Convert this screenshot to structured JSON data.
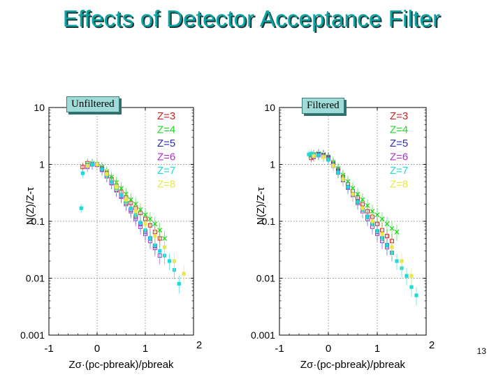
{
  "slide": {
    "title": "Effects of Detector Acceptance Filter",
    "page_number": "13"
  },
  "chart_data": [
    {
      "type": "scatter",
      "label_box": "Unfiltered",
      "xlabel": "Zσ·(pc-pbreak)/pbreak",
      "ylabel": "N(Z)/Z-τ",
      "yscale": "log",
      "xlim": [
        -1,
        2
      ],
      "ylim": [
        0.001,
        10
      ],
      "x_ticks": [
        "-1",
        "0",
        "1",
        "2"
      ],
      "y_ticks": [
        "0.001",
        "0.01",
        "0.1",
        "1",
        "10"
      ],
      "legend_position": "top-right",
      "series": [
        {
          "name": "Z=3",
          "color": "#d42020",
          "x": [
            -0.3,
            -0.2,
            -0.1,
            0,
            0.1,
            0.2,
            0.3,
            0.4,
            0.5,
            0.6,
            0.7,
            0.8,
            0.9,
            1.0,
            1.1,
            1.2,
            1.3
          ],
          "y": [
            0.9,
            1.05,
            1.0,
            1.0,
            0.85,
            0.7,
            0.55,
            0.42,
            0.33,
            0.26,
            0.21,
            0.17,
            0.14,
            0.11,
            0.085,
            0.065,
            0.05
          ]
        },
        {
          "name": "Z=4",
          "color": "#22d822",
          "x": [
            -0.2,
            -0.1,
            0,
            0.1,
            0.2,
            0.3,
            0.4,
            0.5,
            0.6,
            0.7,
            0.8,
            0.9,
            1.0,
            1.1,
            1.2,
            1.3,
            1.4
          ],
          "y": [
            1.0,
            1.05,
            1.0,
            0.9,
            0.75,
            0.6,
            0.48,
            0.38,
            0.3,
            0.24,
            0.2,
            0.16,
            0.13,
            0.11,
            0.09,
            0.07,
            0.05
          ]
        },
        {
          "name": "Z=5",
          "color": "#2a2ab0",
          "x": [
            -0.2,
            -0.1,
            0,
            0.1,
            0.2,
            0.3,
            0.4,
            0.5,
            0.6,
            0.7,
            0.8,
            0.9,
            1.0,
            1.1,
            1.2
          ],
          "y": [
            0.95,
            1.0,
            1.0,
            0.82,
            0.62,
            0.47,
            0.36,
            0.28,
            0.21,
            0.16,
            0.12,
            0.09,
            0.065,
            0.05,
            0.037
          ]
        },
        {
          "name": "Z=6",
          "color": "#b030c8",
          "x": [
            -0.2,
            -0.1,
            0,
            0.1,
            0.2,
            0.3,
            0.4,
            0.5,
            0.6,
            0.7,
            0.8,
            0.9,
            1.0,
            1.1,
            1.2,
            1.3
          ],
          "y": [
            0.9,
            1.0,
            0.98,
            0.8,
            0.62,
            0.47,
            0.35,
            0.27,
            0.2,
            0.15,
            0.11,
            0.08,
            0.06,
            0.045,
            0.034,
            0.025
          ]
        },
        {
          "name": "Z=7",
          "color": "#20d8d8",
          "x": [
            -0.33,
            -0.3,
            -0.2,
            -0.1,
            0,
            0.1,
            0.2,
            0.3,
            0.4,
            0.5,
            0.6,
            0.7,
            0.8,
            0.9,
            1.0,
            1.1,
            1.2,
            1.3,
            1.4,
            1.5,
            1.6,
            1.7
          ],
          "y": [
            0.17,
            0.7,
            0.95,
            1.0,
            1.0,
            0.82,
            0.64,
            0.49,
            0.38,
            0.29,
            0.22,
            0.17,
            0.13,
            0.095,
            0.07,
            0.05,
            0.038,
            0.03,
            0.025,
            0.02,
            0.014,
            0.008
          ]
        },
        {
          "name": "Z=8",
          "color": "#e8e84a",
          "x": [
            -0.2,
            0,
            0.2,
            0.4,
            0.6,
            0.8,
            1.0,
            1.2,
            1.4,
            1.6,
            1.8
          ],
          "y": [
            0.95,
            1.0,
            0.68,
            0.4,
            0.24,
            0.15,
            0.09,
            0.055,
            0.035,
            0.02,
            0.012
          ]
        }
      ]
    },
    {
      "type": "scatter",
      "label_box": "Filtered",
      "xlabel": "Zσ·(pc-pbreak)/pbreak",
      "ylabel": "N(Z)/Z-τ",
      "yscale": "log",
      "xlim": [
        -1,
        2
      ],
      "ylim": [
        0.001,
        10
      ],
      "x_ticks": [
        "-1",
        "0",
        "1",
        "2"
      ],
      "y_ticks": [
        "0.001",
        "0.01",
        "0.1",
        "1",
        "10"
      ],
      "legend_position": "top-right",
      "series": [
        {
          "name": "Z=3",
          "color": "#d42020",
          "x": [
            -0.35,
            -0.3,
            -0.2,
            -0.1,
            0,
            0.1,
            0.2,
            0.3,
            0.4,
            0.5,
            0.6,
            0.7,
            0.8,
            0.9,
            1.0,
            1.1,
            1.2,
            1.3
          ],
          "y": [
            1.3,
            1.5,
            1.5,
            1.45,
            1.35,
            1.05,
            0.8,
            0.6,
            0.45,
            0.34,
            0.26,
            0.2,
            0.15,
            0.12,
            0.09,
            0.07,
            0.055,
            0.045
          ]
        },
        {
          "name": "Z=4",
          "color": "#22d822",
          "x": [
            -0.35,
            -0.3,
            -0.2,
            -0.1,
            0,
            0.1,
            0.2,
            0.3,
            0.4,
            0.5,
            0.6,
            0.7,
            0.8,
            0.9,
            1.0,
            1.1,
            1.2,
            1.3,
            1.4
          ],
          "y": [
            1.4,
            1.5,
            1.55,
            1.5,
            1.35,
            1.1,
            0.85,
            0.65,
            0.5,
            0.38,
            0.3,
            0.24,
            0.19,
            0.15,
            0.13,
            0.11,
            0.09,
            0.075,
            0.065
          ]
        },
        {
          "name": "Z=5",
          "color": "#2a2ab0",
          "x": [
            -0.3,
            -0.2,
            -0.1,
            0,
            0.1,
            0.2,
            0.3,
            0.4,
            0.5,
            0.6,
            0.7,
            0.8,
            0.9,
            1.0,
            1.1,
            1.2
          ],
          "y": [
            1.4,
            1.5,
            1.45,
            1.3,
            1.0,
            0.75,
            0.55,
            0.4,
            0.3,
            0.22,
            0.16,
            0.12,
            0.09,
            0.065,
            0.05,
            0.038
          ]
        },
        {
          "name": "Z=6",
          "color": "#b030c8",
          "x": [
            -0.3,
            -0.2,
            -0.1,
            0,
            0.1,
            0.2,
            0.3,
            0.4,
            0.5,
            0.6,
            0.7,
            0.8,
            0.9,
            1.0,
            1.1,
            1.2,
            1.3
          ],
          "y": [
            1.35,
            1.45,
            1.4,
            1.25,
            0.95,
            0.72,
            0.53,
            0.39,
            0.29,
            0.21,
            0.15,
            0.11,
            0.08,
            0.06,
            0.045,
            0.035,
            0.028
          ]
        },
        {
          "name": "Z=7",
          "color": "#20d8d8",
          "x": [
            -0.4,
            -0.35,
            -0.3,
            -0.2,
            -0.1,
            0,
            0.1,
            0.2,
            0.3,
            0.4,
            0.5,
            0.6,
            0.7,
            0.8,
            0.9,
            1.0,
            1.1,
            1.2,
            1.3,
            1.4,
            1.5,
            1.6,
            1.7,
            1.8
          ],
          "y": [
            1.5,
            1.55,
            1.5,
            1.45,
            1.35,
            1.2,
            0.95,
            0.72,
            0.54,
            0.4,
            0.3,
            0.22,
            0.16,
            0.12,
            0.09,
            0.068,
            0.05,
            0.038,
            0.028,
            0.02,
            0.015,
            0.011,
            0.007,
            0.005
          ]
        },
        {
          "name": "Z=8",
          "color": "#e8e84a",
          "x": [
            -0.3,
            -0.1,
            0.1,
            0.3,
            0.5,
            0.7,
            0.9,
            1.1,
            1.3,
            1.5,
            1.7
          ],
          "y": [
            1.4,
            1.35,
            0.95,
            0.55,
            0.3,
            0.17,
            0.1,
            0.06,
            0.035,
            0.02,
            0.011
          ]
        }
      ]
    }
  ]
}
